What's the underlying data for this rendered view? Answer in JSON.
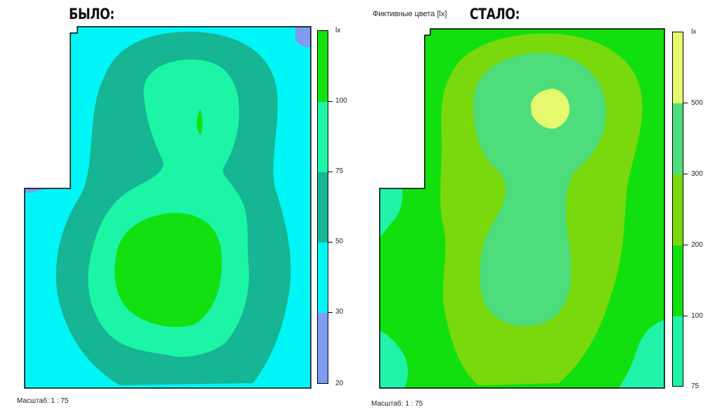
{
  "before": {
    "heading": "БЫЛО:",
    "scale_text": "Масштаб: 1 : 75",
    "legend": {
      "unit": "lx",
      "ticks": [
        "100",
        "75",
        "50",
        "30",
        "20"
      ],
      "colors": [
        "#12e010",
        "#1cf4a6",
        "#16b593",
        "#00f6f6",
        "#7e9cf0"
      ]
    }
  },
  "after": {
    "subtitle": "Фиктивные цвета [lx]",
    "heading": "СТАЛО:",
    "scale_text": "Масштаб: 1 : 75",
    "legend": {
      "unit": "lx",
      "ticks": [
        "500",
        "300",
        "200",
        "100",
        "75"
      ],
      "colors": [
        "#e6f86e",
        "#4ddd7a",
        "#7ad90c",
        "#12e00e",
        "#20f2a8"
      ]
    }
  },
  "palette": {
    "before_zone_20_30": "#7e9cf0",
    "before_zone_30_50": "#00f6f6",
    "before_zone_50_75": "#16b593",
    "before_zone_75_100": "#1cf4a6",
    "before_zone_100": "#12e010",
    "after_zone_75_100": "#20f2a8",
    "after_zone_100_200": "#12e00e",
    "after_zone_200_300": "#7ad90c",
    "after_zone_300_500": "#4ddd7a",
    "after_zone_500": "#e6f86e"
  }
}
